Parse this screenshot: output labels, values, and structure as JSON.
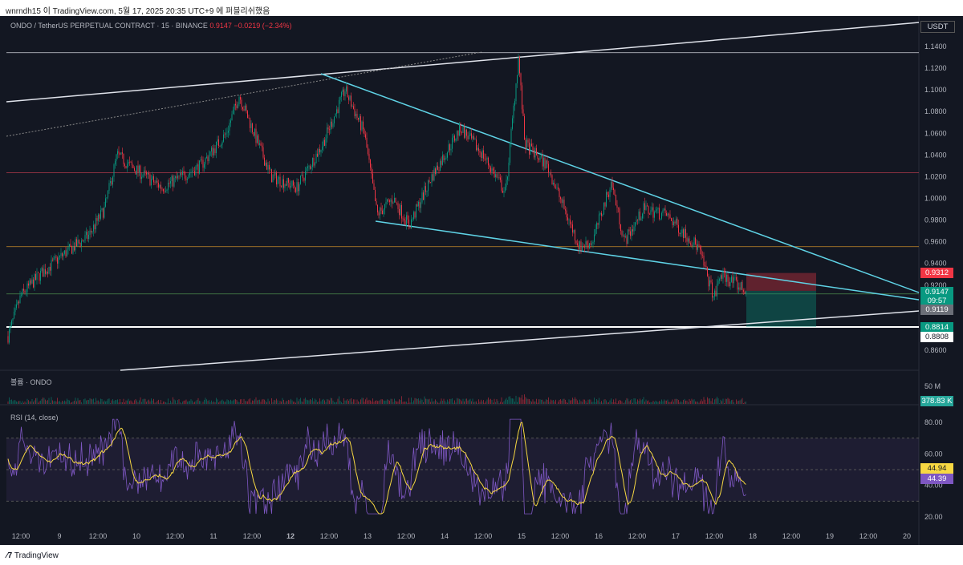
{
  "header": {
    "published": "wnrndh15 이 TradingView.com, 5월 17, 2025 20:35 UTC+9 에 퍼블리쉬했음"
  },
  "legend": {
    "symbol": "ONDO / TetherUS PERPETUAL CONTRACT · 15 · BINANCE",
    "last": "0.9147",
    "change": "−0.0219 (−2.34%)"
  },
  "currency": "USDT",
  "volume_label": "볼륨 · ONDO",
  "rsi_label": "RSI (14, close)",
  "footer": {
    "brand": "TradingView"
  },
  "tags": {
    "stop": "0.9312",
    "last": "0.9147",
    "countdown": "09:57",
    "level1": "0.9119",
    "target": "0.8814",
    "level2": "0.8808",
    "volume": "378.83 K",
    "rsi_ma": "44.94",
    "rsi": "44.39"
  },
  "colors": {
    "up": "#089981",
    "down": "#f23645",
    "trend": "#5fd3e6",
    "rsi": "#7e57c2",
    "rsi_ma": "#f7d842"
  },
  "chart_data": [
    {
      "type": "line",
      "title": "ONDO / TetherUS PERPETUAL CONTRACT · 15 · BINANCE",
      "ylim": [
        0.85,
        1.16
      ],
      "y_ticks": [
        "1.1400",
        "1.1200",
        "1.1000",
        "1.0800",
        "1.0600",
        "1.0400",
        "1.0200",
        "1.0000",
        "0.9800",
        "0.9600",
        "0.9400",
        "0.9200",
        "0.8600"
      ],
      "x_ticks": [
        "12:00",
        "9",
        "12:00",
        "10",
        "12:00",
        "11",
        "12:00",
        "12",
        "12:00",
        "13",
        "12:00",
        "14",
        "12:00",
        "15",
        "12:00",
        "16",
        "12:00",
        "17",
        "12:00",
        "18",
        "12:00",
        "19",
        "12:00",
        "20"
      ],
      "series": [
        {
          "points": [
            [
              "05-08 08:00",
              0.873
            ],
            [
              "05-08 12:00",
              0.91
            ],
            [
              "05-08 18:00",
              0.93
            ],
            [
              "05-09 02:00",
              0.95
            ],
            [
              "05-09 09:00",
              0.965
            ],
            [
              "05-09 14:00",
              0.99
            ],
            [
              "05-09 18:00",
              1.04
            ],
            [
              "05-09 22:00",
              1.03
            ],
            [
              "05-10 08:00",
              1.01
            ],
            [
              "05-10 20:00",
              1.03
            ],
            [
              "05-11 04:00",
              1.06
            ],
            [
              "05-11 08:00",
              1.095
            ],
            [
              "05-11 14:00",
              1.05
            ],
            [
              "05-11 18:00",
              1.02
            ],
            [
              "05-12 02:00",
              1.01
            ],
            [
              "05-12 10:00",
              1.05
            ],
            [
              "05-12 17:00",
              1.1
            ],
            [
              "05-12 23:00",
              1.06
            ],
            [
              "05-13 03:00",
              0.985
            ],
            [
              "05-13 08:00",
              1.0
            ],
            [
              "05-13 13:00",
              0.975
            ],
            [
              "05-13 20:00",
              1.02
            ],
            [
              "05-14 05:00",
              1.065
            ],
            [
              "05-14 12:00",
              1.04
            ],
            [
              "05-14 19:00",
              1.005
            ],
            [
              "05-14 23:00",
              1.13
            ],
            [
              "05-15 01:00",
              1.05
            ],
            [
              "05-15 08:00",
              1.03
            ],
            [
              "05-15 18:00",
              0.955
            ],
            [
              "05-15 22:00",
              0.96
            ],
            [
              "05-16 04:00",
              1.015
            ],
            [
              "05-16 08:00",
              0.96
            ],
            [
              "05-16 14:00",
              0.99
            ],
            [
              "05-16 21:00",
              0.985
            ],
            [
              "05-17 07:00",
              0.955
            ],
            [
              "05-17 12:00",
              0.908
            ],
            [
              "05-17 14:00",
              0.93
            ],
            [
              "05-17 22:00",
              0.9147
            ]
          ]
        }
      ],
      "horizontal_levels": [
        1.1343,
        1.0237,
        0.9555,
        0.9119,
        0.8814
      ],
      "position": {
        "entry": 0.9147,
        "stop": 0.9312,
        "target": 0.8814
      }
    },
    {
      "type": "line",
      "title": "RSI (14, close)",
      "ylim": [
        15,
        85
      ],
      "y_ticks": [
        "80.00",
        "60.00",
        "40.00",
        "20.00"
      ],
      "bands": [
        30,
        50,
        70
      ],
      "last": {
        "rsi": 44.39,
        "ma": 44.94
      }
    }
  ]
}
